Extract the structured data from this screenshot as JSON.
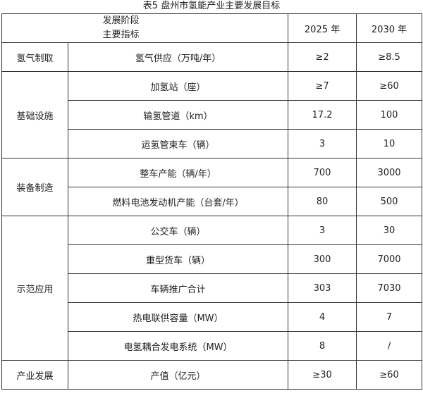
{
  "title": "表5 盘州市氢能产业主要发展目标",
  "header": {
    "stage_label": "发展阶段",
    "indicator_label": "主要指标",
    "year1": "2025 年",
    "year2": "2030 年"
  },
  "groups": [
    {
      "category": "氢气制取",
      "items": [
        {
          "indicator": "氢气供应（万吨/年）",
          "v2025": "≥2",
          "v2030": "≥8.5"
        }
      ]
    },
    {
      "category": "基础设施",
      "items": [
        {
          "indicator": "加氢站（座）",
          "v2025": "≥7",
          "v2030": "≥60"
        },
        {
          "indicator": "输氢管道（km）",
          "v2025": "17.2",
          "v2030": "100"
        },
        {
          "indicator": "运氢管束车（辆）",
          "v2025": "3",
          "v2030": "10"
        }
      ]
    },
    {
      "category": "装备制造",
      "items": [
        {
          "indicator": "整车产能（辆/年）",
          "v2025": "700",
          "v2030": "3000"
        },
        {
          "indicator": "燃料电池发动机产能（台套/年）",
          "v2025": "80",
          "v2030": "500"
        }
      ]
    },
    {
      "category": "示范应用",
      "items": [
        {
          "indicator": "公交车（辆）",
          "v2025": "3",
          "v2030": "30"
        },
        {
          "indicator": "重型货车（辆）",
          "v2025": "300",
          "v2030": "7000"
        },
        {
          "indicator": "车辆推广合计",
          "v2025": "303",
          "v2030": "7030"
        },
        {
          "indicator": "热电联供容量（MW）",
          "v2025": "4",
          "v2030": "7"
        },
        {
          "indicator": "电氢耦合发电系统（MW）",
          "v2025": "8",
          "v2030": "/"
        }
      ]
    },
    {
      "category": "产业发展",
      "items": [
        {
          "indicator": "产值（亿元）",
          "v2025": "≥30",
          "v2030": "≥60"
        }
      ]
    }
  ]
}
